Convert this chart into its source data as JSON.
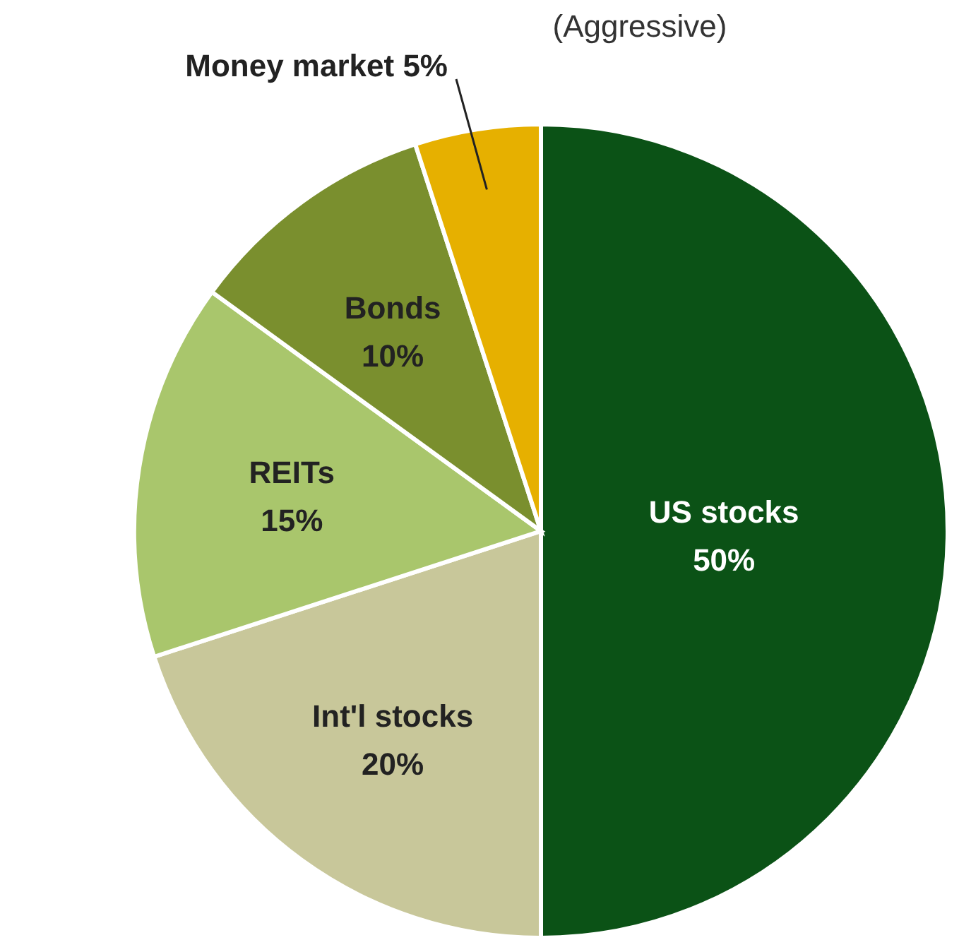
{
  "chart_data": {
    "type": "pie",
    "title": "(Aggressive)",
    "categories": [
      "US stocks",
      "Int'l stocks",
      "REITs",
      "Bonds",
      "Money market"
    ],
    "values": [
      50,
      20,
      15,
      10,
      5
    ],
    "value_labels": [
      "50%",
      "20%",
      "15%",
      "10%",
      "5%"
    ],
    "colors": [
      "#0b5216",
      "#c8c79a",
      "#a9c66c",
      "#7a8f2e",
      "#e6b000"
    ]
  }
}
